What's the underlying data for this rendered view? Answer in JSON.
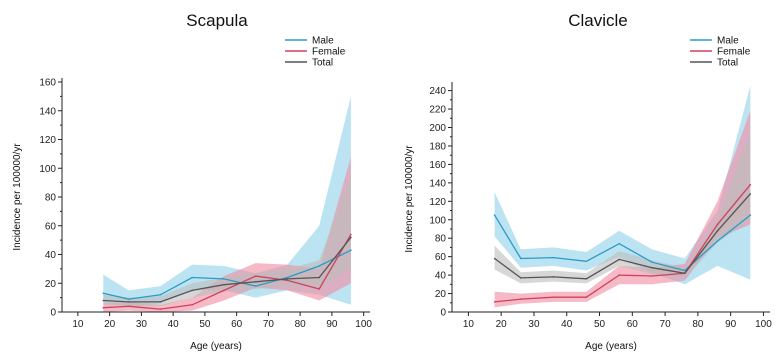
{
  "colors": {
    "male": "#2a9bc9",
    "female": "#d0405e",
    "total": "#555555",
    "male_band": "#8fd0ea",
    "female_band": "#f08ca0",
    "total_band": "#bdbdbd"
  },
  "chart_data": [
    {
      "type": "line",
      "title": "Scapula",
      "xlabel": "Age (years)",
      "ylabel": "Incidence per 100000/yr",
      "xlim": [
        5,
        102
      ],
      "ylim": [
        0,
        160
      ],
      "xticks": [
        10,
        20,
        30,
        40,
        50,
        60,
        70,
        80,
        90,
        100
      ],
      "yticks": [
        0,
        20,
        40,
        60,
        80,
        100,
        120,
        140,
        160
      ],
      "legend": "top-right",
      "x": [
        18,
        26,
        36,
        46,
        56,
        66,
        76,
        86,
        96
      ],
      "series": [
        {
          "name": "Male",
          "color_key": "male",
          "band_key": "male_band",
          "values": [
            13,
            9,
            12,
            24,
            23,
            18,
            24,
            32,
            43
          ],
          "lower": [
            6,
            4,
            6,
            15,
            15,
            10,
            15,
            12,
            5
          ],
          "upper": [
            26,
            15,
            18,
            33,
            32,
            27,
            33,
            60,
            150
          ]
        },
        {
          "name": "Female",
          "color_key": "female",
          "band_key": "female_band",
          "values": [
            3,
            4,
            2,
            5,
            15,
            25,
            22,
            16,
            54
          ],
          "lower": [
            0,
            1,
            0,
            1,
            8,
            17,
            15,
            8,
            20
          ],
          "upper": [
            6,
            7,
            5,
            10,
            25,
            34,
            33,
            30,
            108
          ]
        },
        {
          "name": "Total",
          "color_key": "total",
          "band_key": "total_band",
          "values": [
            8,
            7,
            7,
            15,
            19,
            21,
            23,
            24,
            52
          ],
          "lower": [
            5,
            4,
            4,
            10,
            14,
            16,
            18,
            17,
            30
          ],
          "upper": [
            12,
            10,
            11,
            20,
            24,
            27,
            30,
            36,
            95
          ]
        }
      ]
    },
    {
      "type": "line",
      "title": "Clavicle",
      "xlabel": "Age (years)",
      "ylabel": "Incidence per 100000/yr",
      "xlim": [
        5,
        102
      ],
      "ylim": [
        0,
        245
      ],
      "xticks": [
        10,
        20,
        30,
        40,
        50,
        60,
        70,
        80,
        90,
        100
      ],
      "yticks": [
        0,
        20,
        40,
        60,
        80,
        100,
        120,
        140,
        160,
        180,
        200,
        220,
        240
      ],
      "legend": "top-right",
      "x": [
        18,
        26,
        36,
        46,
        56,
        66,
        76,
        86,
        96
      ],
      "series": [
        {
          "name": "Male",
          "color_key": "male",
          "band_key": "male_band",
          "values": [
            105,
            58,
            59,
            55,
            74,
            54,
            45,
            77,
            105
          ],
          "lower": [
            82,
            48,
            50,
            45,
            60,
            42,
            30,
            50,
            35
          ],
          "upper": [
            130,
            68,
            70,
            65,
            88,
            68,
            58,
            110,
            245
          ]
        },
        {
          "name": "Female",
          "color_key": "female",
          "band_key": "female_band",
          "values": [
            11,
            14,
            16,
            16,
            40,
            39,
            42,
            95,
            138
          ],
          "lower": [
            5,
            9,
            11,
            11,
            30,
            30,
            34,
            80,
            95
          ],
          "upper": [
            22,
            20,
            22,
            22,
            50,
            48,
            52,
            120,
            218
          ]
        },
        {
          "name": "Total",
          "color_key": "total",
          "band_key": "total_band",
          "values": [
            58,
            37,
            38,
            36,
            57,
            48,
            42,
            88,
            128
          ],
          "lower": [
            46,
            31,
            33,
            31,
            50,
            41,
            37,
            75,
            100
          ],
          "upper": [
            72,
            43,
            45,
            42,
            66,
            56,
            48,
            100,
            195
          ]
        }
      ]
    }
  ]
}
